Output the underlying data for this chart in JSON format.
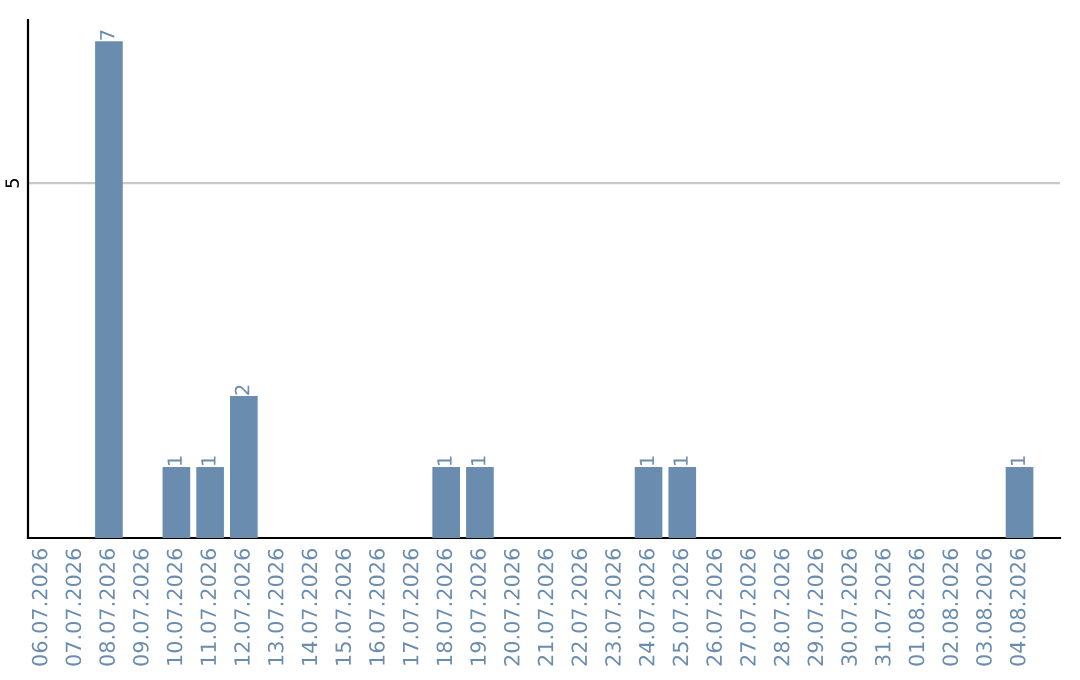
{
  "chart_data": {
    "type": "bar",
    "categories": [
      "06.07.2026",
      "07.07.2026",
      "08.07.2026",
      "09.07.2026",
      "10.07.2026",
      "11.07.2026",
      "12.07.2026",
      "13.07.2026",
      "14.07.2026",
      "15.07.2026",
      "16.07.2026",
      "17.07.2026",
      "18.07.2026",
      "19.07.2026",
      "20.07.2026",
      "21.07.2026",
      "22.07.2026",
      "23.07.2026",
      "24.07.2026",
      "25.07.2026",
      "26.07.2026",
      "27.07.2026",
      "28.07.2026",
      "29.07.2026",
      "30.07.2026",
      "31.07.2026",
      "01.08.2026",
      "02.08.2026",
      "03.08.2026",
      "04.08.2026"
    ],
    "values": [
      0,
      0,
      7,
      0,
      1,
      1,
      2,
      0,
      0,
      0,
      0,
      0,
      1,
      1,
      0,
      0,
      0,
      0,
      1,
      1,
      0,
      0,
      0,
      0,
      0,
      0,
      0,
      0,
      0,
      1
    ],
    "value_labels": [
      null,
      null,
      "7",
      null,
      "1",
      "1",
      "2",
      null,
      null,
      null,
      null,
      null,
      "1",
      "1",
      null,
      null,
      null,
      null,
      "1",
      "1",
      null,
      null,
      null,
      null,
      null,
      null,
      null,
      null,
      null,
      "1"
    ],
    "color": "#6a8caf",
    "ylim": [
      0,
      7.3
    ],
    "yticks": [
      5
    ],
    "grid": "y"
  }
}
